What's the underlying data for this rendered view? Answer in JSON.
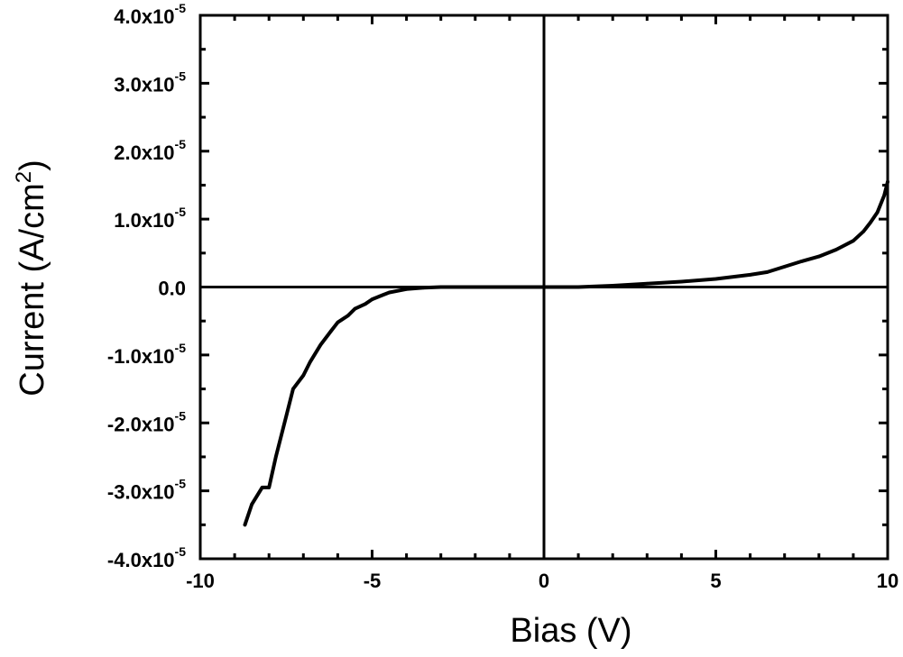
{
  "chart_data": {
    "type": "line",
    "xlabel": "Bias (V)",
    "ylabel_main": "Current (A/cm",
    "ylabel_sup": "2",
    "ylabel_close": ")",
    "xlim": [
      -10,
      10
    ],
    "ylim": [
      -4e-05,
      4e-05
    ],
    "x_ticks": [
      {
        "value": -10,
        "label": "-10"
      },
      {
        "value": -5,
        "label": "-5"
      },
      {
        "value": 0,
        "label": "0"
      },
      {
        "value": 5,
        "label": "5"
      },
      {
        "value": 10,
        "label": "10"
      }
    ],
    "y_ticks": [
      {
        "value": 4e-05,
        "mantissa": "4.0x10",
        "exp": "-5"
      },
      {
        "value": 3e-05,
        "mantissa": "3.0x10",
        "exp": "-5"
      },
      {
        "value": 2e-05,
        "mantissa": "2.0x10",
        "exp": "-5"
      },
      {
        "value": 1e-05,
        "mantissa": "1.0x10",
        "exp": "-5"
      },
      {
        "value": 0.0,
        "mantissa": "0.0",
        "exp": ""
      },
      {
        "value": -1e-05,
        "mantissa": "-1.0x10",
        "exp": "-5"
      },
      {
        "value": -2e-05,
        "mantissa": "-2.0x10",
        "exp": "-5"
      },
      {
        "value": -3e-05,
        "mantissa": "-3.0x10",
        "exp": "-5"
      },
      {
        "value": -4e-05,
        "mantissa": "-4.0x10",
        "exp": "-5"
      }
    ],
    "grid": false,
    "series": [
      {
        "x": [
          -8.7,
          -8.5,
          -8.2,
          -8.0,
          -7.8,
          -7.5,
          -7.3,
          -7.0,
          -6.8,
          -6.5,
          -6.2,
          -6.0,
          -5.7,
          -5.5,
          -5.2,
          -5.0,
          -4.7,
          -4.5,
          -4.0,
          -3.5,
          -3.0,
          -2.5,
          -2.0,
          -1.5,
          -1.0,
          0.0,
          1.0,
          2.0,
          3.0,
          4.0,
          5.0,
          6.0,
          6.5,
          7.0,
          7.5,
          8.0,
          8.5,
          9.0,
          9.3,
          9.5,
          9.7,
          9.9,
          10.0
        ],
        "y": [
          -3.5e-05,
          -3.2e-05,
          -2.95e-05,
          -2.95e-05,
          -2.5e-05,
          -1.9e-05,
          -1.5e-05,
          -1.3e-05,
          -1.1e-05,
          -8.5e-06,
          -6.5e-06,
          -5.2e-06,
          -4.2e-06,
          -3.2e-06,
          -2.5e-06,
          -1.8e-06,
          -1.2e-06,
          -8e-07,
          -3e-07,
          -1e-07,
          0.0,
          0.0,
          0.0,
          0.0,
          0.0,
          0.0,
          0.0,
          2e-07,
          5e-07,
          8e-07,
          1.2e-06,
          1.8e-06,
          2.2e-06,
          3e-06,
          3.8e-06,
          4.5e-06,
          5.5e-06,
          6.8e-06,
          8.2e-06,
          9.5e-06,
          1.1e-05,
          1.35e-05,
          1.55e-05
        ]
      }
    ]
  }
}
